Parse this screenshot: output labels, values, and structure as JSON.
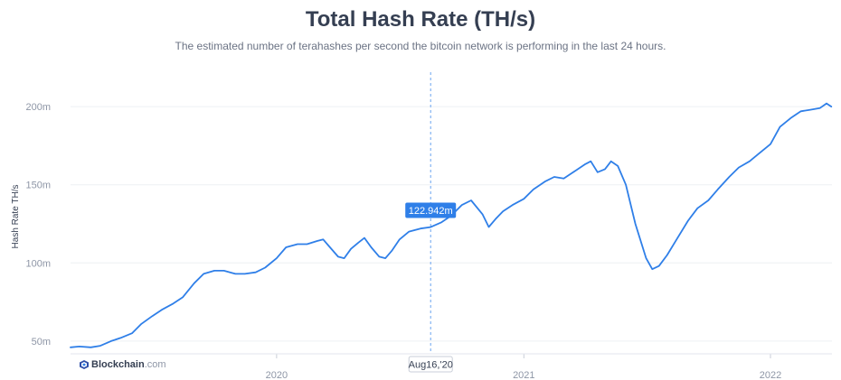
{
  "chart_data": {
    "type": "line",
    "title": "Total Hash Rate (TH/s)",
    "subtitle": "The estimated number of terahashes per second the bitcoin network is performing in the last 24 hours.",
    "ylabel": "Hash Rate TH/s",
    "xlabel": "",
    "ylim": [
      43,
      222
    ],
    "xlim": [
      "2019-03-02",
      "2022-04-02"
    ],
    "yticks": [
      {
        "value": 50,
        "label": "50m"
      },
      {
        "value": 100,
        "label": "100m"
      },
      {
        "value": 150,
        "label": "150m"
      },
      {
        "value": 200,
        "label": "200m"
      }
    ],
    "xticks": [
      {
        "value": "2020-01-01",
        "label": "2020"
      },
      {
        "value": "2021-01-01",
        "label": "2021"
      },
      {
        "value": "2022-01-01",
        "label": "2022"
      }
    ],
    "grid": "horizontal",
    "line_color": "#2f7fe8",
    "series": [
      {
        "name": "",
        "points": [
          [
            "2019-03-02",
            46
          ],
          [
            "2019-03-15",
            46.5
          ],
          [
            "2019-04-01",
            46
          ],
          [
            "2019-04-15",
            47
          ],
          [
            "2019-05-01",
            50
          ],
          [
            "2019-05-15",
            52
          ],
          [
            "2019-06-01",
            55
          ],
          [
            "2019-06-15",
            61
          ],
          [
            "2019-07-01",
            66
          ],
          [
            "2019-07-15",
            70
          ],
          [
            "2019-08-01",
            74
          ],
          [
            "2019-08-15",
            78
          ],
          [
            "2019-09-01",
            87
          ],
          [
            "2019-09-15",
            93
          ],
          [
            "2019-10-01",
            95
          ],
          [
            "2019-10-15",
            95
          ],
          [
            "2019-11-01",
            93
          ],
          [
            "2019-11-15",
            93
          ],
          [
            "2019-12-01",
            94
          ],
          [
            "2019-12-15",
            97
          ],
          [
            "2020-01-01",
            103
          ],
          [
            "2020-01-15",
            110
          ],
          [
            "2020-02-01",
            112
          ],
          [
            "2020-02-15",
            112
          ],
          [
            "2020-03-01",
            114
          ],
          [
            "2020-03-10",
            115
          ],
          [
            "2020-03-20",
            110
          ],
          [
            "2020-04-01",
            104
          ],
          [
            "2020-04-10",
            103
          ],
          [
            "2020-04-20",
            109
          ],
          [
            "2020-05-01",
            113
          ],
          [
            "2020-05-10",
            116
          ],
          [
            "2020-05-20",
            110
          ],
          [
            "2020-06-01",
            104
          ],
          [
            "2020-06-10",
            103
          ],
          [
            "2020-06-20",
            108
          ],
          [
            "2020-07-01",
            115
          ],
          [
            "2020-07-15",
            120
          ],
          [
            "2020-08-01",
            122
          ],
          [
            "2020-08-16",
            122.942
          ],
          [
            "2020-09-01",
            126
          ],
          [
            "2020-09-15",
            130
          ],
          [
            "2020-10-01",
            137
          ],
          [
            "2020-10-15",
            140
          ],
          [
            "2020-11-01",
            131
          ],
          [
            "2020-11-10",
            123
          ],
          [
            "2020-11-20",
            128
          ],
          [
            "2020-12-01",
            133
          ],
          [
            "2020-12-15",
            137
          ],
          [
            "2021-01-01",
            141
          ],
          [
            "2021-01-15",
            147
          ],
          [
            "2021-02-01",
            152
          ],
          [
            "2021-02-15",
            155
          ],
          [
            "2021-03-01",
            154
          ],
          [
            "2021-03-15",
            158
          ],
          [
            "2021-04-01",
            163
          ],
          [
            "2021-04-10",
            165
          ],
          [
            "2021-04-20",
            158
          ],
          [
            "2021-05-01",
            160
          ],
          [
            "2021-05-10",
            165
          ],
          [
            "2021-05-20",
            162
          ],
          [
            "2021-06-01",
            150
          ],
          [
            "2021-06-15",
            125
          ],
          [
            "2021-07-01",
            103
          ],
          [
            "2021-07-10",
            96
          ],
          [
            "2021-07-20",
            98
          ],
          [
            "2021-08-01",
            105
          ],
          [
            "2021-08-15",
            115
          ],
          [
            "2021-09-01",
            127
          ],
          [
            "2021-09-15",
            135
          ],
          [
            "2021-10-01",
            140
          ],
          [
            "2021-10-15",
            147
          ],
          [
            "2021-11-01",
            155
          ],
          [
            "2021-11-15",
            161
          ],
          [
            "2021-12-01",
            165
          ],
          [
            "2021-12-15",
            170
          ],
          [
            "2022-01-01",
            176
          ],
          [
            "2022-01-15",
            187
          ],
          [
            "2022-02-01",
            193
          ],
          [
            "2022-02-15",
            197
          ],
          [
            "2022-03-01",
            198
          ],
          [
            "2022-03-15",
            199
          ],
          [
            "2022-03-25",
            202
          ],
          [
            "2022-04-01",
            200
          ]
        ]
      }
    ],
    "crosshair": {
      "x": "2020-08-16",
      "x_label": "Aug16,'20",
      "y_label": "122.942m",
      "label_color": "#2f7fe8"
    }
  },
  "watermark": {
    "brand": "Blockchain",
    "tld": ".com"
  }
}
